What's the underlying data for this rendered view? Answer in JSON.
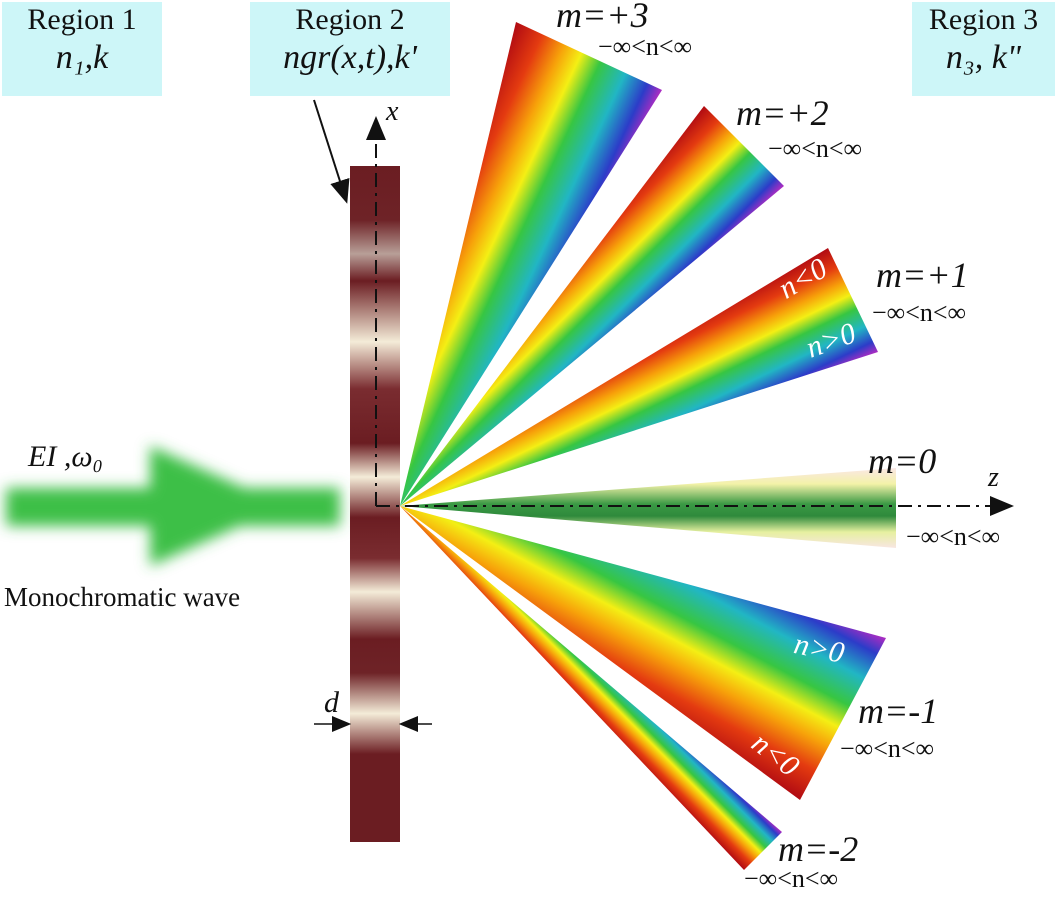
{
  "regions": [
    {
      "title": "Region 1",
      "symbol": "n₁,k"
    },
    {
      "title": "Region 2",
      "symbol": "ngr(x,t),k'"
    },
    {
      "title": "Region 3",
      "symbol": "n₃, k\""
    }
  ],
  "axes": {
    "x": "x",
    "z": "z"
  },
  "incident": {
    "field": "EI ,ω₀",
    "caption": "Monochromatic wave"
  },
  "thickness": "d",
  "orders": [
    {
      "label": "m=+3",
      "range": "−∞<n<∞"
    },
    {
      "label": "m=+2",
      "range": "−∞<n<∞"
    },
    {
      "label": "m=+1",
      "range": "−∞<n<∞",
      "upper": "n<0",
      "lower": "n>0"
    },
    {
      "label": "m=0",
      "range": "−∞<n<∞"
    },
    {
      "label": "m=-1",
      "range": "−∞<n<∞",
      "upper": "n>0",
      "lower": "n<0"
    },
    {
      "label": "m=-2",
      "range": "−∞<n<∞"
    }
  ],
  "colors": {
    "region_bg": "#cdf6f8",
    "slab_dark": "#6b1d22",
    "slab_light": "#f4ecd8",
    "beam": "#3dbf47"
  }
}
